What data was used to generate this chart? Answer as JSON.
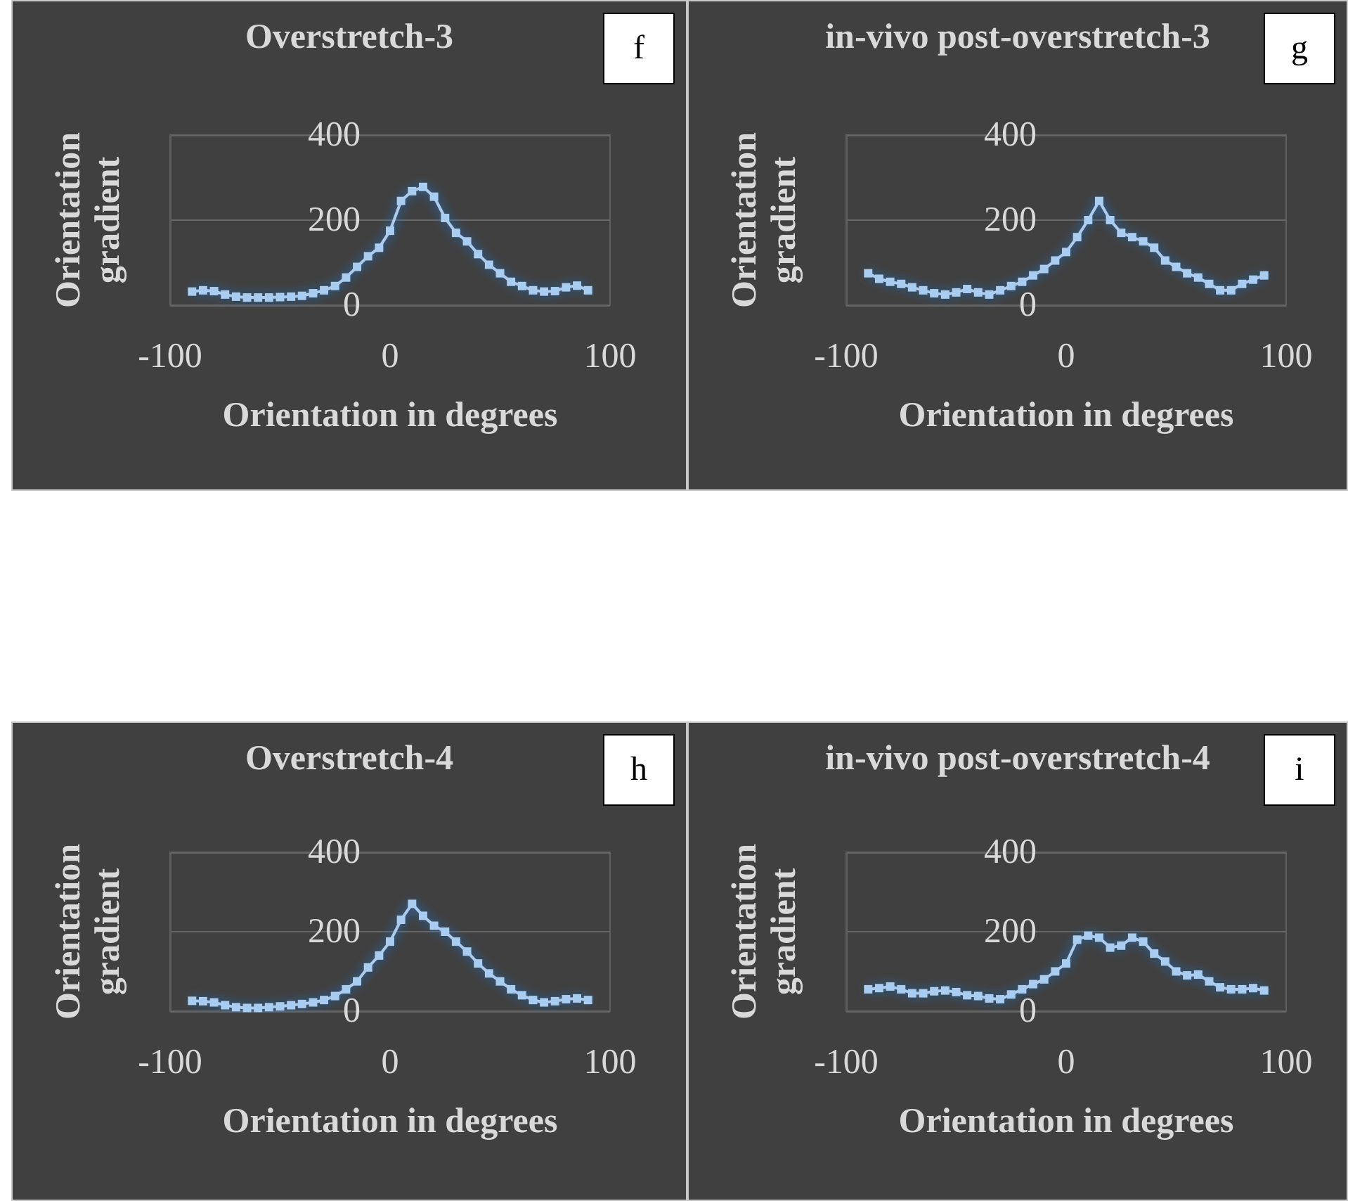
{
  "chart_data": [
    {
      "type": "line",
      "title": "Overstretch-3",
      "xlabel": "Orientation in degrees",
      "ylabel": "Orientation gradient",
      "annotations": [
        "f"
      ],
      "color": "#a8cdf0",
      "marker": "square",
      "grid": "y",
      "xlim": [
        -100,
        100
      ],
      "xticks": [
        -100,
        0,
        100
      ],
      "ylim": [
        0,
        400
      ],
      "yticks": [
        0,
        200,
        400
      ],
      "x": [
        -90,
        -85,
        -80,
        -75,
        -70,
        -65,
        -60,
        -55,
        -50,
        -45,
        -40,
        -35,
        -30,
        -25,
        -20,
        -15,
        -10,
        -5,
        0,
        5,
        10,
        15,
        20,
        25,
        30,
        35,
        40,
        45,
        50,
        55,
        60,
        65,
        70,
        75,
        80,
        85,
        90
      ],
      "values": [
        32,
        35,
        33,
        25,
        20,
        18,
        18,
        18,
        19,
        20,
        22,
        28,
        35,
        45,
        65,
        90,
        115,
        135,
        175,
        245,
        268,
        278,
        255,
        205,
        170,
        150,
        120,
        95,
        75,
        55,
        45,
        35,
        32,
        33,
        42,
        46,
        35
      ]
    },
    {
      "type": "line",
      "title": "in-vivo post-overstretch-3",
      "xlabel": "Orientation in degrees",
      "ylabel": "Orientation gradient",
      "annotations": [
        "g"
      ],
      "color": "#a8cdf0",
      "marker": "square",
      "grid": "y",
      "xlim": [
        -100,
        100
      ],
      "xticks": [
        -100,
        0,
        100
      ],
      "ylim": [
        0,
        400
      ],
      "yticks": [
        0,
        200,
        400
      ],
      "x": [
        -90,
        -85,
        -80,
        -75,
        -70,
        -65,
        -60,
        -55,
        -50,
        -45,
        -40,
        -35,
        -30,
        -25,
        -20,
        -15,
        -10,
        -5,
        0,
        5,
        10,
        15,
        20,
        25,
        30,
        35,
        40,
        45,
        50,
        55,
        60,
        65,
        70,
        75,
        80,
        85,
        90
      ],
      "values": [
        75,
        62,
        55,
        50,
        42,
        35,
        28,
        25,
        30,
        38,
        30,
        25,
        35,
        45,
        55,
        70,
        85,
        105,
        125,
        160,
        200,
        245,
        200,
        170,
        160,
        150,
        135,
        105,
        90,
        75,
        65,
        50,
        35,
        35,
        50,
        60,
        70
      ]
    },
    {
      "type": "line",
      "title": "Overstretch-4",
      "xlabel": "Orientation in degrees",
      "ylabel": "Orientation gradient",
      "annotations": [
        "h"
      ],
      "color": "#a8cdf0",
      "marker": "square",
      "grid": "y",
      "xlim": [
        -100,
        100
      ],
      "xticks": [
        -100,
        0,
        100
      ],
      "ylim": [
        0,
        400
      ],
      "yticks": [
        0,
        200,
        400
      ],
      "x": [
        -90,
        -85,
        -80,
        -75,
        -70,
        -65,
        -60,
        -55,
        -50,
        -45,
        -40,
        -35,
        -30,
        -25,
        -20,
        -15,
        -10,
        -5,
        0,
        5,
        10,
        15,
        20,
        25,
        30,
        35,
        40,
        45,
        50,
        55,
        60,
        65,
        70,
        75,
        80,
        85,
        90
      ],
      "values": [
        26,
        25,
        22,
        15,
        10,
        8,
        8,
        10,
        12,
        15,
        18,
        22,
        28,
        38,
        55,
        75,
        110,
        140,
        175,
        230,
        270,
        240,
        215,
        200,
        175,
        150,
        120,
        95,
        75,
        55,
        40,
        28,
        22,
        25,
        30,
        32,
        28
      ]
    },
    {
      "type": "line",
      "title": "in-vivo post-overstretch-4",
      "xlabel": "Orientation in degrees",
      "ylabel": "Orientation gradient",
      "annotations": [
        "i"
      ],
      "color": "#a8cdf0",
      "marker": "square",
      "grid": "y",
      "xlim": [
        -100,
        100
      ],
      "xticks": [
        -100,
        0,
        100
      ],
      "ylim": [
        0,
        400
      ],
      "yticks": [
        0,
        200,
        400
      ],
      "x": [
        -90,
        -85,
        -80,
        -75,
        -70,
        -65,
        -60,
        -55,
        -50,
        -45,
        -40,
        -35,
        -30,
        -25,
        -20,
        -15,
        -10,
        -5,
        0,
        5,
        10,
        15,
        20,
        25,
        30,
        35,
        40,
        45,
        50,
        55,
        60,
        65,
        70,
        75,
        80,
        85,
        90
      ],
      "values": [
        55,
        58,
        62,
        55,
        45,
        45,
        50,
        52,
        48,
        40,
        38,
        32,
        30,
        42,
        55,
        68,
        80,
        100,
        120,
        180,
        190,
        185,
        160,
        165,
        185,
        175,
        145,
        125,
        100,
        90,
        92,
        75,
        60,
        55,
        55,
        58,
        52
      ]
    }
  ]
}
